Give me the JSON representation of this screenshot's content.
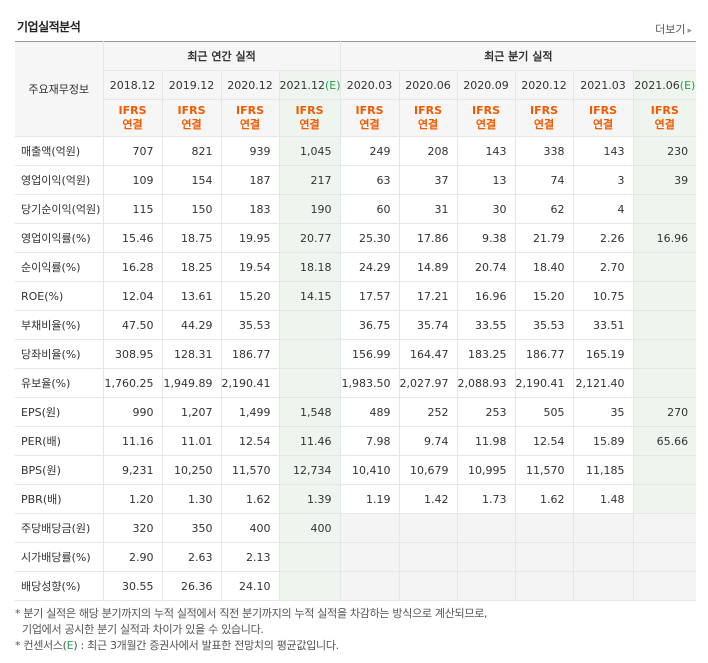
{
  "title": "기업실적분석",
  "more_label": "더보기",
  "head": {
    "row_label": "주요재무정보",
    "annual_group": "최근 연간 실적",
    "quarter_group": "최근 분기 실적",
    "periods": [
      "2018.12",
      "2019.12",
      "2020.12",
      "2021.12",
      "2020.03",
      "2020.06",
      "2020.09",
      "2020.12",
      "2021.03",
      "2021.06"
    ],
    "est_suffix": "(E)",
    "ifrs_line1": "IFRS",
    "ifrs_line2": "연결"
  },
  "rows": [
    {
      "label": "매출액(억원)",
      "values": [
        "707",
        "821",
        "939",
        "1,045",
        "249",
        "208",
        "143",
        "338",
        "143",
        "230"
      ]
    },
    {
      "label": "영업이익(억원)",
      "values": [
        "109",
        "154",
        "187",
        "217",
        "63",
        "37",
        "13",
        "74",
        "3",
        "39"
      ]
    },
    {
      "label": "당기순이익(억원)",
      "values": [
        "115",
        "150",
        "183",
        "190",
        "60",
        "31",
        "30",
        "62",
        "4",
        ""
      ]
    },
    {
      "label": "영업이익률(%)",
      "values": [
        "15.46",
        "18.75",
        "19.95",
        "20.77",
        "25.30",
        "17.86",
        "9.38",
        "21.79",
        "2.26",
        "16.96"
      ]
    },
    {
      "label": "순이익률(%)",
      "values": [
        "16.28",
        "18.25",
        "19.54",
        "18.18",
        "24.29",
        "14.89",
        "20.74",
        "18.40",
        "2.70",
        ""
      ]
    },
    {
      "label": "ROE(%)",
      "values": [
        "12.04",
        "13.61",
        "15.20",
        "14.15",
        "17.57",
        "17.21",
        "16.96",
        "15.20",
        "10.75",
        ""
      ]
    },
    {
      "label": "부채비율(%)",
      "values": [
        "47.50",
        "44.29",
        "35.53",
        "",
        "36.75",
        "35.74",
        "33.55",
        "35.53",
        "33.51",
        ""
      ]
    },
    {
      "label": "당좌비율(%)",
      "values": [
        "308.95",
        "128.31",
        "186.77",
        "",
        "156.99",
        "164.47",
        "183.25",
        "186.77",
        "165.19",
        ""
      ]
    },
    {
      "label": "유보율(%)",
      "values": [
        "1,760.25",
        "1,949.89",
        "2,190.41",
        "",
        "1,983.50",
        "2,027.97",
        "2,088.93",
        "2,190.41",
        "2,121.40",
        ""
      ]
    },
    {
      "label": "EPS(원)",
      "values": [
        "990",
        "1,207",
        "1,499",
        "1,548",
        "489",
        "252",
        "253",
        "505",
        "35",
        "270"
      ]
    },
    {
      "label": "PER(배)",
      "values": [
        "11.16",
        "11.01",
        "12.54",
        "11.46",
        "7.98",
        "9.74",
        "11.98",
        "12.54",
        "15.89",
        "65.66"
      ]
    },
    {
      "label": "BPS(원)",
      "values": [
        "9,231",
        "10,250",
        "11,570",
        "12,734",
        "10,410",
        "10,679",
        "10,995",
        "11,570",
        "11,185",
        ""
      ]
    },
    {
      "label": "PBR(배)",
      "values": [
        "1.20",
        "1.30",
        "1.62",
        "1.39",
        "1.19",
        "1.42",
        "1.73",
        "1.62",
        "1.48",
        ""
      ]
    },
    {
      "label": "주당배당금(원)",
      "values": [
        "320",
        "350",
        "400",
        "400",
        "",
        "",
        "",
        "",
        "",
        ""
      ]
    },
    {
      "label": "시가배당률(%)",
      "values": [
        "2.90",
        "2.63",
        "2.13",
        "",
        "",
        "",
        "",
        "",
        "",
        ""
      ]
    },
    {
      "label": "배당성향(%)",
      "values": [
        "30.55",
        "26.36",
        "24.10",
        "",
        "",
        "",
        "",
        "",
        "",
        ""
      ]
    }
  ],
  "footnote": {
    "line1": "* 분기 실적은 해당 분기까지의 누적 실적에서 직전 분기까지의 누적 실적을 차감하는 방식으로 계산되므로,",
    "line2": "기업에서 공시한 분기 실적과 차이가 있을 수 있습니다.",
    "line3_prefix": "* 컨센서스(",
    "line3_e": "E",
    "line3_suffix": ") : 최근 3개월간 증권사에서 발표한 전망치의 평균값입니다."
  },
  "colors": {
    "ifrs": "#f35a00",
    "estimate": "#2a9d4e",
    "estimate_bg": "#eef5ee"
  }
}
